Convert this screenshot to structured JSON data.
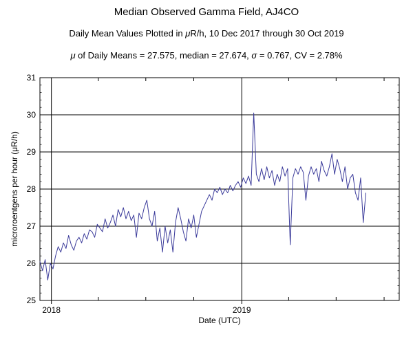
{
  "chart_data": {
    "type": "line",
    "title": "Median Observed Gamma Field, AJ4CO",
    "subtitle_prefix": "Daily Mean Values Plotted in ",
    "subtitle_mu": "μ",
    "subtitle_suffix": "R/h, 10 Dec 2017 through 30 Oct 2019",
    "stats_mu": "μ",
    "stats_part1": " of Daily Means = 27.575,   median = 27.674,   ",
    "stats_sigma": "σ",
    "stats_part2": " = 0.767,   CV = 2.78%",
    "xlabel": "Date (UTC)",
    "ylabel": "microroentgens per hour (μR/h)",
    "xlim": [
      "2017-12-10",
      "2019-10-30"
    ],
    "ylim": [
      25,
      31
    ],
    "y_ticks": [
      "25",
      "26",
      "27",
      "28",
      "29",
      "30",
      "31"
    ],
    "x_major_ticks": [
      {
        "date": "2018-01-01",
        "label": "2018"
      },
      {
        "date": "2019-01-01",
        "label": "2019"
      }
    ],
    "x_minor_ticks": [
      "2018-04-01",
      "2018-07-01",
      "2018-10-01",
      "2019-04-01",
      "2019-07-01",
      "2019-10-01"
    ],
    "grid": "major",
    "line_color": "#3a3a9a",
    "series": [
      {
        "start_date": "2017-12-10",
        "step_days": 5,
        "values": [
          26.05,
          25.8,
          26.1,
          25.55,
          26.0,
          25.85,
          26.2,
          26.45,
          26.3,
          26.55,
          26.4,
          26.75,
          26.5,
          26.35,
          26.6,
          26.7,
          26.55,
          26.8,
          26.65,
          26.9,
          26.85,
          26.7,
          27.05,
          26.95,
          26.85,
          27.2,
          26.95,
          27.1,
          27.3,
          27.0,
          27.45,
          27.25,
          27.5,
          27.2,
          27.4,
          27.15,
          27.3,
          26.7,
          27.35,
          27.2,
          27.5,
          27.7,
          27.2,
          27.0,
          27.4,
          26.6,
          26.95,
          26.3,
          27.0,
          26.55,
          26.9,
          26.3,
          27.1,
          27.5,
          27.2,
          26.85,
          26.6,
          27.2,
          26.95,
          27.3,
          26.7,
          27.05,
          27.4,
          27.55,
          27.7,
          27.85,
          27.7,
          28.0,
          27.9,
          28.05,
          27.85,
          28.0,
          27.9,
          28.1,
          27.95,
          28.1,
          28.2,
          28.05,
          28.3,
          28.15,
          28.35,
          28.1,
          30.05,
          28.4,
          28.2,
          28.55,
          28.25,
          28.6,
          28.3,
          28.5,
          28.1,
          28.4,
          28.2,
          28.6,
          28.35,
          28.55,
          26.5,
          28.3,
          28.55,
          28.4,
          28.6,
          28.45,
          27.7,
          28.35,
          28.6,
          28.4,
          28.55,
          28.2,
          28.75,
          28.5,
          28.35,
          28.6,
          28.95,
          28.4,
          28.8,
          28.55,
          28.2,
          28.6,
          28.0,
          28.3,
          28.4,
          27.9,
          27.7,
          28.3,
          27.1,
          27.9
        ]
      }
    ]
  }
}
